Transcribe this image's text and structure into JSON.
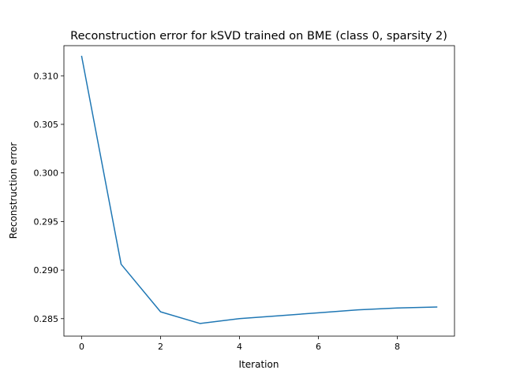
{
  "chart_data": {
    "type": "line",
    "title": "Reconstruction error for kSVD trained on BME (class 0, sparsity 2)",
    "xlabel": "Iteration",
    "ylabel": "Reconstruction error",
    "xlim": [
      -0.45,
      9.45
    ],
    "ylim": [
      0.2832,
      0.3131
    ],
    "xticks": [
      0,
      2,
      4,
      6,
      8
    ],
    "yticks": [
      0.285,
      0.29,
      0.295,
      0.3,
      0.305,
      0.31
    ],
    "ytick_labels": [
      "0.285",
      "0.290",
      "0.295",
      "0.300",
      "0.305",
      "0.310"
    ],
    "grid": false,
    "legend": "none",
    "series": [
      {
        "color": "#1f77b4",
        "x": [
          0,
          1,
          2,
          3,
          4,
          5,
          6,
          7,
          8,
          9
        ],
        "y": [
          0.312,
          0.2906,
          0.2857,
          0.2845,
          0.285,
          0.2853,
          0.2856,
          0.2859,
          0.2861,
          0.2862
        ]
      }
    ]
  }
}
